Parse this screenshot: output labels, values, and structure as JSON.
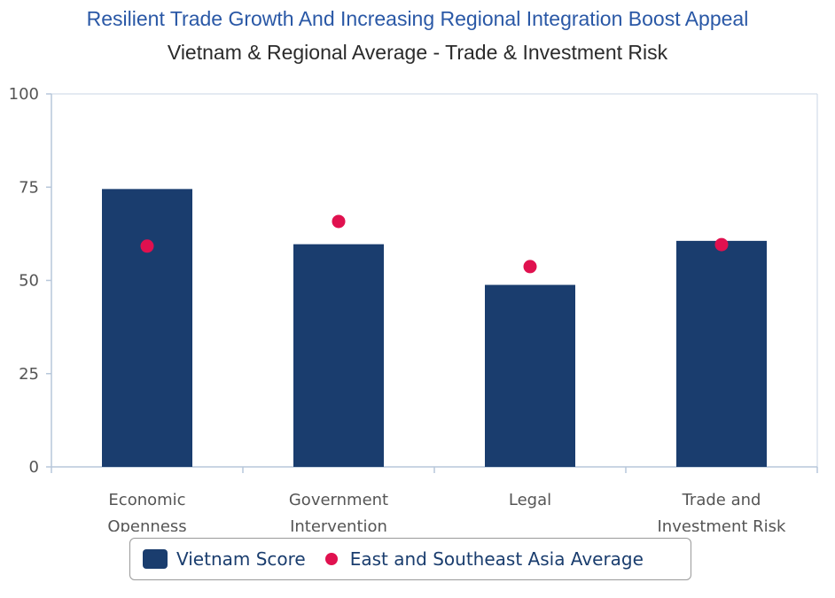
{
  "title": "Resilient Trade Growth And Increasing Regional Integration Boost Appeal",
  "subtitle": "Vietnam & Regional Average - Trade & Investment Risk",
  "colors": {
    "title": "#2a58a6",
    "bar": "#1a3d6e",
    "dot": "#e0114f",
    "axis": "#b7c7da"
  },
  "chart_data": {
    "type": "bar",
    "categories": [
      [
        "Economic",
        "Openness"
      ],
      [
        "Government",
        "Intervention"
      ],
      [
        "Legal"
      ],
      [
        "Trade and",
        "Investment Risk"
      ]
    ],
    "series": [
      {
        "name": "Vietnam Score",
        "kind": "bar",
        "values": [
          74.5,
          59.7,
          48.8,
          60.6
        ]
      },
      {
        "name": "East and Southeast Asia Average",
        "kind": "dot",
        "values": [
          59.2,
          65.8,
          53.7,
          59.6
        ]
      }
    ],
    "ylim": [
      0,
      100
    ],
    "yticks": [
      0,
      25,
      50,
      75,
      100
    ],
    "legend": "bottom",
    "grid": false
  }
}
